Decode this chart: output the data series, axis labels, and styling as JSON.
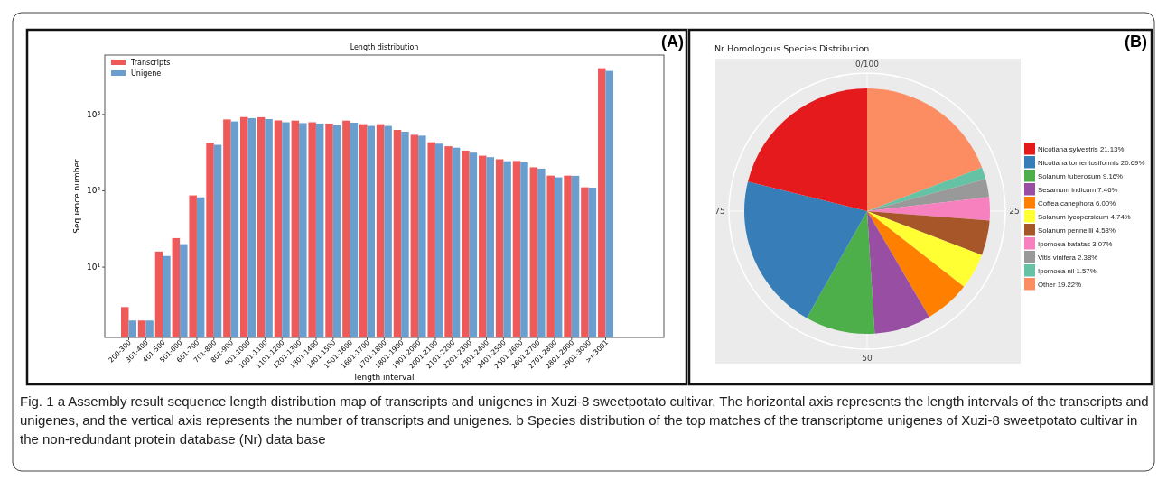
{
  "chart_data": [
    {
      "type": "bar",
      "title": "Length distribution",
      "xlabel": "length interval",
      "ylabel": "Sequence number",
      "log": "y",
      "legend": "top left",
      "grid": false,
      "categories": [
        "200-300",
        "301-400",
        "401-500",
        "501-600",
        "601-700",
        "701-800",
        "801-900",
        "901-1000",
        "1001-1100",
        "1101-1200",
        "1201-1300",
        "1301-1400",
        "1401-1500",
        "1501-1600",
        "1601-1700",
        "1701-1800",
        "1801-1900",
        "1901-2000",
        "2001-2100",
        "2101-2200",
        "2201-2300",
        "2301-2400",
        "2401-2500",
        "2501-2600",
        "2601-2700",
        "2701-2800",
        "2801-2900",
        "2901-3000",
        ">=3001"
      ],
      "series": [
        {
          "name": "Transcripts",
          "color": "#ee5a5a",
          "values": [
            3,
            2,
            16,
            24,
            87,
            425,
            860,
            925,
            920,
            835,
            830,
            790,
            760,
            830,
            745,
            745,
            627,
            541,
            432,
            383,
            336,
            288,
            259,
            246,
            203,
            158,
            158,
            111,
            4030
          ]
        },
        {
          "name": "Unigene",
          "color": "#6a9ecf",
          "values": [
            2,
            2,
            14,
            20,
            82,
            400,
            810,
            895,
            870,
            790,
            770,
            760,
            727,
            780,
            708,
            708,
            595,
            527,
            414,
            367,
            316,
            276,
            244,
            236,
            195,
            150,
            157,
            110,
            3720
          ]
        }
      ],
      "ylim": [
        1.2,
        6000
      ],
      "yticks": [
        {
          "value": 10,
          "label": "10¹"
        },
        {
          "value": 100,
          "label": "10²"
        },
        {
          "value": 1000,
          "label": "10³"
        }
      ],
      "annotations": [
        "(A)",
        "Fig. 1 a Assembly result sequence length distribution map of transcripts and unigenes in Xuzi-8 sweetpotato cultivar. The horizontal axis represents the length intervals of the transcripts and unigenes, and the vertical axis represents the number of transcripts and unigenes. b Species distribution of the top matches of the transcriptome unigenes of Xuzi-8 sweetpotato cultivar in the non-redundant protein database (Nr) data base"
      ]
    },
    {
      "type": "pie",
      "title": "Nr Homologous Species Distribution",
      "legend": "right",
      "grid": true,
      "categories": [
        "Nicotiana sylvestris 21.13%",
        "Nicotiana tomentosiformis 20.69%",
        "Solanum tuberosum 9.16%",
        "Sesamum indicum 7.46%",
        "Coffea canephora 6.00%",
        "Solanum lycopersicum 4.74%",
        "Solanum pennellii 4.58%",
        "Ipomoea batatas 3.07%",
        "Vitis vinifera 2.38%",
        "Ipomoea nil 1.57%",
        "Other 19.22%"
      ],
      "values": [
        21.13,
        20.69,
        9.16,
        7.46,
        6.0,
        4.74,
        4.58,
        3.07,
        2.38,
        1.57,
        19.22
      ],
      "colors": [
        "#e41a1c",
        "#377eb8",
        "#4daf4a",
        "#984ea3",
        "#ff7f00",
        "#ffff33",
        "#a65628",
        "#f781bf",
        "#999999",
        "#66c2a5",
        "#fc8d62"
      ],
      "annotations": [
        "(B)",
        "0/100",
        "25",
        "50",
        "75"
      ]
    }
  ]
}
